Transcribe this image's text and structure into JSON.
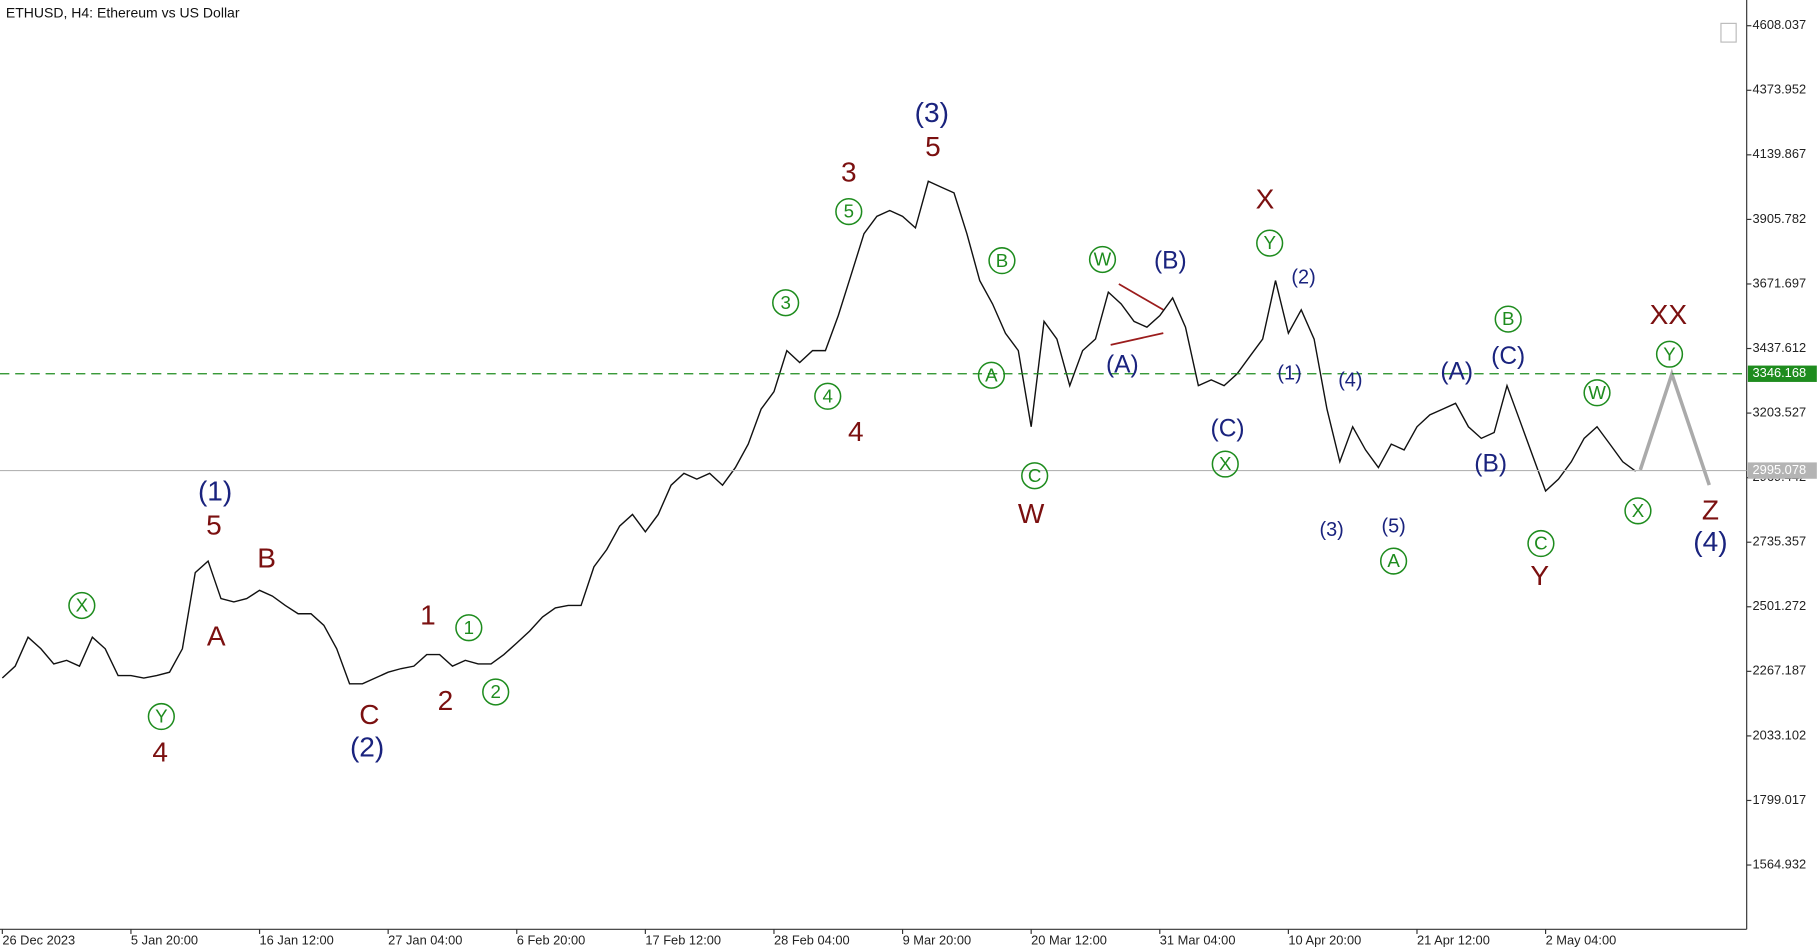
{
  "chart_data": {
    "type": "line",
    "title": "ETHUSD, H4:  Ethereum vs US Dollar",
    "categories": [
      "26 Dec 2023",
      null,
      null,
      null,
      null,
      null,
      null,
      null,
      null,
      null,
      "5 Jan 20:00",
      null,
      null,
      null,
      null,
      null,
      null,
      null,
      null,
      null,
      "16 Jan 12:00",
      null,
      null,
      null,
      null,
      null,
      null,
      null,
      null,
      null,
      "27 Jan 04:00",
      null,
      null,
      null,
      null,
      null,
      null,
      null,
      null,
      null,
      "6 Feb 20:00",
      null,
      null,
      null,
      null,
      null,
      null,
      null,
      null,
      null,
      "17 Feb 12:00",
      null,
      null,
      null,
      null,
      null,
      null,
      null,
      null,
      null,
      "28 Feb 04:00",
      null,
      null,
      null,
      null,
      null,
      null,
      null,
      null,
      null,
      "9 Mar 20:00",
      null,
      null,
      null,
      null,
      null,
      null,
      null,
      null,
      null,
      "20 Mar 12:00",
      null,
      null,
      null,
      null,
      null,
      null,
      null,
      null,
      null,
      "31 Mar 04:00",
      null,
      null,
      null,
      null,
      null,
      null,
      null,
      null,
      null,
      "10 Apr 20:00",
      null,
      null,
      null,
      null,
      null,
      null,
      null,
      null,
      null,
      "21 Apr 12:00",
      null,
      null,
      null,
      null,
      null,
      null,
      null,
      null,
      null,
      "2 May 04:00",
      null,
      null,
      null,
      null,
      null,
      null,
      null
    ],
    "series": [
      {
        "name": "ETHUSD",
        "color": "#111111",
        "values": [
          2243,
          2286,
          2391,
          2349,
          2294,
          2307,
          2286,
          2391,
          2349,
          2252,
          2252,
          2243,
          2252,
          2264,
          2349,
          2625,
          2667,
          2531,
          2519,
          2531,
          2561,
          2540,
          2506,
          2476,
          2476,
          2434,
          2349,
          2222,
          2222,
          2243,
          2264,
          2277,
          2286,
          2328,
          2328,
          2286,
          2307,
          2294,
          2294,
          2328,
          2370,
          2413,
          2464,
          2497,
          2506,
          2506,
          2646,
          2709,
          2794,
          2836,
          2773,
          2836,
          2942,
          2985,
          2964,
          2985,
          2942,
          3006,
          3091,
          3218,
          3281,
          3430,
          3387,
          3430,
          3430,
          3557,
          3705,
          3854,
          3917,
          3938,
          3917,
          3875,
          4044,
          4023,
          4002,
          3854,
          3684,
          3599,
          3493,
          3430,
          3154,
          3536,
          3472,
          3303,
          3430,
          3472,
          3642,
          3599,
          3536,
          3515,
          3557,
          3621,
          3515,
          3303,
          3324,
          3303,
          3345,
          3409,
          3472,
          3684,
          3493,
          3578,
          3472,
          3218,
          3027,
          3154,
          3070,
          3006,
          3091,
          3070,
          3154,
          3197,
          3218,
          3239,
          3154,
          3112,
          3133,
          3303,
          3176,
          3048,
          2921,
          2964,
          3027,
          3112,
          3154,
          3091,
          3027,
          2993
        ]
      }
    ],
    "ylim": [
      1331.9,
      4701.3
    ],
    "yticks": [
      4608.037,
      4373.952,
      4139.867,
      3905.782,
      3671.697,
      3437.612,
      3203.527,
      2969.442,
      2735.357,
      2501.272,
      2267.187,
      2033.102,
      1799.017,
      1564.932
    ],
    "price_lines": [
      {
        "value": 3346.168,
        "color": "#1e8c1e"
      },
      {
        "value": 2995.078,
        "color": "#b4b4b4"
      }
    ],
    "annotations": [
      {
        "text": "(1)",
        "color": "#1a237e"
      },
      {
        "text": "5",
        "color": "#7b1010"
      },
      {
        "text": "A",
        "color": "#7b1010"
      },
      {
        "text": "B",
        "color": "#7b1010"
      },
      {
        "text": "X",
        "color": "#1e8c1e"
      },
      {
        "text": "Y",
        "color": "#1e8c1e"
      },
      {
        "text": "4",
        "color": "#7b1010"
      },
      {
        "text": "C",
        "color": "#7b1010"
      },
      {
        "text": "(2)",
        "color": "#1a237e"
      },
      {
        "text": "1",
        "color": "#7b1010"
      },
      {
        "text": "2",
        "color": "#7b1010"
      },
      {
        "text": "1",
        "color": "#1e8c1e"
      },
      {
        "text": "2",
        "color": "#1e8c1e"
      },
      {
        "text": "3",
        "color": "#1e8c1e"
      },
      {
        "text": "4",
        "color": "#1e8c1e"
      },
      {
        "text": "5",
        "color": "#1e8c1e"
      },
      {
        "text": "3",
        "color": "#7b1010"
      },
      {
        "text": "4",
        "color": "#7b1010"
      },
      {
        "text": "(3)",
        "color": "#1a237e"
      },
      {
        "text": "5",
        "color": "#7b1010"
      },
      {
        "text": "B",
        "color": "#1e8c1e"
      },
      {
        "text": "A",
        "color": "#1e8c1e"
      },
      {
        "text": "C",
        "color": "#1e8c1e"
      },
      {
        "text": "W",
        "color": "#7b1010"
      },
      {
        "text": "W",
        "color": "#1e8c1e"
      },
      {
        "text": "(A)",
        "color": "#1a237e"
      },
      {
        "text": "(B)",
        "color": "#1a237e"
      },
      {
        "text": "(C)",
        "color": "#1a237e"
      },
      {
        "text": "X",
        "color": "#1e8c1e"
      },
      {
        "text": "X",
        "color": "#7b1010"
      },
      {
        "text": "Y",
        "color": "#1e8c1e"
      },
      {
        "text": "(2)",
        "color": "#1a237e"
      },
      {
        "text": "(1)",
        "color": "#1a237e"
      },
      {
        "text": "(4)",
        "color": "#1a237e"
      },
      {
        "text": "(3)",
        "color": "#1a237e"
      },
      {
        "text": "(5)",
        "color": "#1a237e"
      },
      {
        "text": "A",
        "color": "#1e8c1e"
      },
      {
        "text": "(A)",
        "color": "#1a237e"
      },
      {
        "text": "B",
        "color": "#1e8c1e"
      },
      {
        "text": "(C)",
        "color": "#1a237e"
      },
      {
        "text": "(B)",
        "color": "#1a237e"
      },
      {
        "text": "W",
        "color": "#1e8c1e"
      },
      {
        "text": "C",
        "color": "#1e8c1e"
      },
      {
        "text": "Y",
        "color": "#7b1010"
      },
      {
        "text": "XX",
        "color": "#7b1010"
      },
      {
        "text": "Y",
        "color": "#1e8c1e"
      },
      {
        "text": "X",
        "color": "#1e8c1e"
      },
      {
        "text": "Z",
        "color": "#7b1010"
      },
      {
        "text": "(4)",
        "color": "#1a237e"
      }
    ]
  }
}
